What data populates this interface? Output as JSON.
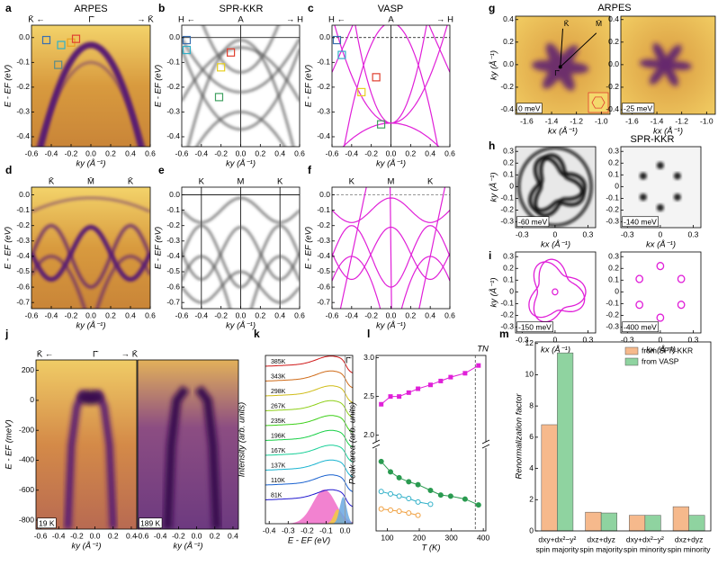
{
  "chart_data": [
    {
      "type": "image",
      "label": "a",
      "title": "ARPES",
      "top_ticks": [
        {
          "value": -0.55,
          "label": "K̄ ←"
        },
        {
          "value": 0,
          "label": "Γ̄"
        },
        {
          "value": 0.55,
          "label": "→ K̄"
        }
      ],
      "xlabel": "ky (Å⁻¹)",
      "ylabel": "E - EF (eV)",
      "xlim": [
        -0.6,
        0.6
      ],
      "ylim": [
        -0.44,
        0.05
      ],
      "xticks": [
        -0.6,
        -0.4,
        -0.2,
        {
          "value": 0,
          "label": "0.0"
        },
        0.2,
        0.4,
        0.6
      ],
      "yticks": [
        {
          "value": 0,
          "label": "0.0"
        },
        -0.1,
        -0.2,
        -0.3,
        -0.4
      ]
    },
    {
      "type": "image",
      "label": "b",
      "title": "SPR-KKR",
      "top_ticks": [
        {
          "value": -0.55,
          "label": "H ←"
        },
        {
          "value": 0,
          "label": "A"
        },
        {
          "value": 0.55,
          "label": "→ H"
        }
      ],
      "xlabel": "ky (Å⁻¹)",
      "ylabel": "E - EF (eV)",
      "xlim": [
        -0.6,
        0.6
      ],
      "ylim": [
        -0.44,
        0.05
      ],
      "xticks": [
        -0.6,
        -0.4,
        -0.2,
        {
          "value": 0,
          "label": "0.0"
        },
        0.2,
        0.4,
        0.6
      ],
      "yticks": [
        {
          "value": 0,
          "label": "0.0"
        },
        -0.1,
        -0.2,
        -0.3,
        -0.4
      ]
    },
    {
      "type": "image",
      "label": "c",
      "title": "VASP",
      "top_ticks": [
        {
          "value": -0.55,
          "label": "H ←"
        },
        {
          "value": 0,
          "label": "A"
        },
        {
          "value": 0.55,
          "label": "→ H"
        }
      ],
      "xlabel": "ky (Å⁻¹)",
      "ylabel": "E - EF (eV)",
      "xlim": [
        -0.6,
        0.6
      ],
      "ylim": [
        -0.44,
        0.05
      ],
      "xticks": [
        -0.6,
        -0.4,
        -0.2,
        {
          "value": 0,
          "label": "0.0"
        },
        0.2,
        0.4,
        0.6
      ],
      "yticks": [
        {
          "value": 0,
          "label": "0.0"
        },
        -0.1,
        -0.2,
        -0.3,
        -0.4
      ]
    },
    {
      "type": "image",
      "label": "d",
      "top_ticks": [
        {
          "value": -0.4,
          "label": "K̄"
        },
        {
          "value": 0,
          "label": "M̄"
        },
        {
          "value": 0.4,
          "label": "K̄"
        }
      ],
      "xlabel": "ky (Å⁻¹)",
      "ylabel": "E - EF (eV)",
      "xlim": [
        -0.6,
        0.6
      ],
      "ylim": [
        -0.74,
        0.05
      ],
      "xticks": [
        -0.6,
        -0.4,
        -0.2,
        {
          "value": 0,
          "label": "0.0"
        },
        0.2,
        0.4,
        0.6
      ],
      "yticks": [
        {
          "value": 0,
          "label": "0.0"
        },
        -0.1,
        -0.2,
        -0.3,
        -0.4,
        -0.5,
        -0.6,
        -0.7
      ]
    },
    {
      "type": "image",
      "label": "e",
      "top_ticks": [
        {
          "value": -0.4,
          "label": "K"
        },
        {
          "value": 0,
          "label": "M"
        },
        {
          "value": 0.4,
          "label": "K"
        }
      ],
      "xlabel": "ky (Å⁻¹)",
      "ylabel": "E - EF (eV)",
      "xlim": [
        -0.6,
        0.6
      ],
      "ylim": [
        -0.74,
        0.05
      ],
      "xticks": [
        -0.6,
        -0.4,
        -0.2,
        {
          "value": 0,
          "label": "0.0"
        },
        0.2,
        0.4,
        0.6
      ],
      "yticks": [
        {
          "value": 0,
          "label": "0.0"
        },
        -0.1,
        -0.2,
        -0.3,
        -0.4,
        -0.5,
        -0.6,
        -0.7
      ]
    },
    {
      "type": "image",
      "label": "f",
      "top_ticks": [
        {
          "value": -0.4,
          "label": "K"
        },
        {
          "value": 0,
          "label": "M"
        },
        {
          "value": 0.4,
          "label": "K"
        }
      ],
      "xlabel": "ky (Å⁻¹)",
      "ylabel": "E - EF (eV)",
      "xlim": [
        -0.6,
        0.6
      ],
      "ylim": [
        -0.74,
        0.05
      ],
      "xticks": [
        -0.6,
        -0.4,
        -0.2,
        {
          "value": 0,
          "label": "0.0"
        },
        0.2,
        0.4,
        0.6
      ],
      "yticks": [
        {
          "value": 0,
          "label": "0.0"
        },
        -0.1,
        -0.2,
        -0.3,
        -0.4,
        -0.5,
        -0.6,
        -0.7
      ]
    },
    {
      "type": "image",
      "label": "g",
      "title": "ARPES",
      "note": "0 meV",
      "annotations": [
        "Γ̄",
        "K̄",
        "M̄"
      ],
      "xlabel": "kx (Å⁻¹)",
      "ylabel": "ky (Å⁻¹)",
      "xlim": [
        -1.69,
        -0.93
      ],
      "ylim": [
        -0.44,
        0.43
      ],
      "xticks": [
        -1.6,
        -1.4,
        -1.2,
        {
          "value": -1,
          "label": "-1.0"
        }
      ],
      "yticks": [
        0.4,
        0.2,
        {
          "value": 0,
          "label": "0.0"
        },
        -0.2,
        -0.4
      ]
    },
    {
      "type": "image",
      "note": "-25 meV",
      "xlabel": "kx (Å⁻¹)",
      "xlim": [
        -1.69,
        -0.93
      ],
      "ylim": [
        -0.44,
        0.43
      ],
      "xticks": [
        -1.6,
        -1.4,
        -1.2,
        {
          "value": -1,
          "label": "-1.0"
        }
      ],
      "yticks": [
        0.4,
        0.2,
        {
          "value": 0,
          "label": "0.0"
        },
        -0.2,
        -0.4
      ]
    },
    {
      "type": "image",
      "label": "h",
      "title": "SPR-KKR",
      "note": "-60 meV",
      "xlabel": "kx (Å⁻¹)",
      "ylabel": "ky (Å⁻¹)",
      "xlim": [
        -0.36,
        0.37
      ],
      "ylim": [
        -0.35,
        0.34
      ],
      "xticks": [
        -0.3,
        0,
        0.3
      ],
      "yticks": [
        0.3,
        0.2,
        0.1,
        0,
        -0.1,
        -0.2,
        -0.3
      ]
    },
    {
      "type": "image",
      "note": "-140 meV",
      "xlabel": "kx (Å⁻¹)",
      "xlim": [
        -0.36,
        0.37
      ],
      "ylim": [
        -0.35,
        0.34
      ],
      "xticks": [
        -0.3,
        0,
        0.3
      ],
      "yticks": [
        0.3,
        0.2,
        0.1,
        0,
        -0.1,
        -0.2,
        -0.3
      ]
    },
    {
      "type": "image",
      "label": "i",
      "title": "VASP",
      "note": "-150 meV",
      "xlabel": "kx (Å⁻¹)",
      "ylabel": "ky (Å⁻¹)",
      "xlim": [
        -0.36,
        0.37
      ],
      "ylim": [
        -0.35,
        0.34
      ],
      "xticks": [
        -0.3,
        0,
        0.3
      ],
      "yticks": [
        0.3,
        0.2,
        0.1,
        0,
        -0.1,
        -0.2,
        -0.3
      ]
    },
    {
      "type": "image",
      "note": "-400 meV",
      "xlabel": "kx (Å⁻¹)",
      "xlim": [
        -0.36,
        0.37
      ],
      "ylim": [
        -0.35,
        0.34
      ],
      "xticks": [
        -0.3,
        0,
        0.3
      ],
      "yticks": [
        0.3,
        0.2,
        0.1,
        0,
        -0.1,
        -0.2,
        -0.3
      ]
    },
    {
      "type": "image",
      "label": "j",
      "top_ticks": [
        {
          "value": -0.55,
          "label": "K̄ ←"
        },
        {
          "value": 0,
          "label": "Γ̄"
        },
        {
          "value": 0.38,
          "label": "→ K̄"
        }
      ],
      "note": "19 K",
      "xlabel": "ky (Å⁻¹)",
      "ylabel": "E - EF (meV)",
      "xlim": [
        -0.65,
        0.46
      ],
      "ylim": [
        -860,
        270
      ],
      "xticks": [
        -0.6,
        -0.4,
        -0.2,
        {
          "value": 0,
          "label": "0.0"
        },
        0.2,
        0.4
      ],
      "yticks": [
        200,
        0,
        -200,
        -400,
        -600,
        -800
      ]
    },
    {
      "type": "image",
      "note": "189 K",
      "xlabel": "ky (Å⁻¹)",
      "xlim": [
        -0.65,
        0.46
      ],
      "ylim": [
        -860,
        270
      ],
      "xticks": [
        -0.6,
        -0.4,
        -0.2,
        {
          "value": 0,
          "label": "0.0"
        },
        0.2,
        0.4
      ]
    },
    {
      "type": "waterfall",
      "label": "k",
      "annotation": "Γ̄",
      "labels": [
        "385K",
        "343K",
        "298K",
        "267K",
        "235K",
        "196K",
        "167K",
        "137K",
        "110K",
        "81K"
      ],
      "xlabel": "E - EF (eV)",
      "ylabel": "Intensity (arb. units)",
      "xlim": [
        -0.42,
        0.04
      ],
      "xticks": [
        -0.4,
        -0.3,
        -0.2,
        -0.1,
        {
          "value": 0,
          "label": "0.0"
        }
      ]
    },
    {
      "type": "scatter",
      "label": "l",
      "xlabel": "T (K)",
      "ylabel": "Peak area (arb. units)",
      "xlim": [
        65,
        408
      ],
      "ylim": [
        1.95,
        3.03
      ],
      "y2lim": [
        0.1,
        1.5
      ],
      "xticks": [
        100,
        200,
        300,
        400
      ],
      "yticks": [
        {
          "value": 2,
          "label": "2.0"
        },
        2.5,
        {
          "value": 3,
          "label": "3.0"
        }
      ],
      "vline": {
        "value": 375,
        "label": "TN"
      },
      "x": [
        81,
        110,
        137,
        167,
        196,
        235,
        267,
        298,
        343,
        385
      ],
      "series": [
        {
          "color": "#e020d8",
          "values": [
            2.4,
            2.5,
            2.5,
            2.55,
            2.6,
            2.65,
            2.7,
            2.75,
            2.8,
            2.9
          ]
        },
        {
          "color": "#2a9a50",
          "axis": "y2",
          "values": [
            1.3,
            1.12,
            1.02,
            0.95,
            0.9,
            0.8,
            0.72,
            0.7,
            0.65,
            0.55
          ]
        },
        {
          "color": "#30b0c8",
          "axis": "y2",
          "values": [
            0.78,
            0.74,
            0.7,
            0.66,
            0.6,
            0.56,
            null,
            null,
            null,
            null
          ]
        },
        {
          "color": "#f0a040",
          "axis": "y2",
          "values": [
            0.48,
            0.46,
            0.44,
            0.41,
            0.37,
            null,
            null,
            null,
            null,
            null
          ]
        }
      ]
    },
    {
      "type": "bar",
      "label": "m",
      "ylabel": "Renormalization factor",
      "ylim": [
        0,
        12.1
      ],
      "yticks": [
        0,
        2,
        4,
        6,
        8,
        10,
        12
      ],
      "legend": "upper right",
      "categories": [
        "dxy+dx²−y²",
        "dxz+dyz",
        "dxy+dx²−y²",
        "dxz+dyz"
      ],
      "subcategories": [
        "spin majority",
        "spin majority",
        "spin minority",
        "spin minority"
      ],
      "series": [
        {
          "name": "from SPR-KKR",
          "color": "#f6b98c",
          "values": [
            6.8,
            1.2,
            1.0,
            1.55
          ]
        },
        {
          "name": "from VASP",
          "color": "#8fd3a0",
          "values": [
            11.4,
            1.15,
            1.0,
            1.0
          ]
        }
      ]
    }
  ]
}
